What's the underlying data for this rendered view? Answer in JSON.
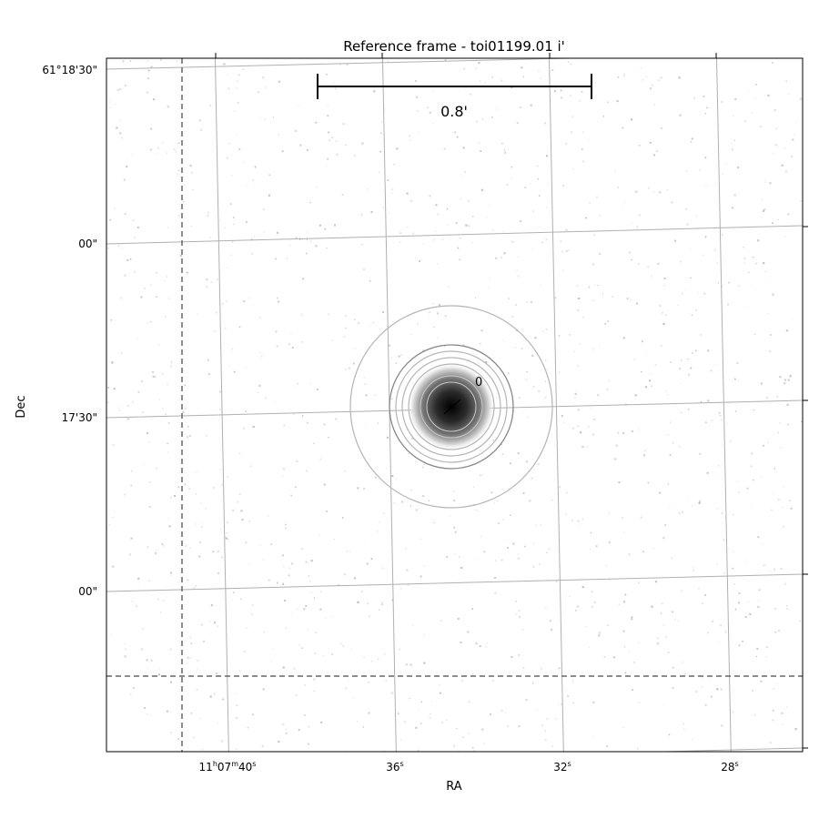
{
  "title": "Reference frame - toi01199.01 i'",
  "xlabel": "RA",
  "ylabel": "Dec",
  "scalebar_label": "0.8'",
  "aperture_label": "0",
  "ra_ticks": [
    {
      "h": "11",
      "m": "07",
      "s": "40",
      "hm": true
    },
    {
      "s": "36"
    },
    {
      "s": "32"
    },
    {
      "s": "28"
    }
  ],
  "dec_ticks": [
    "61°18'30\"",
    "00\"",
    "17'30\"",
    "00\""
  ],
  "colors": {
    "grid": "#b0b0b0",
    "frame": "#000000",
    "dashed": "#666666",
    "aperture_inner": "#888888",
    "aperture_outer": "#b5b5b5"
  }
}
